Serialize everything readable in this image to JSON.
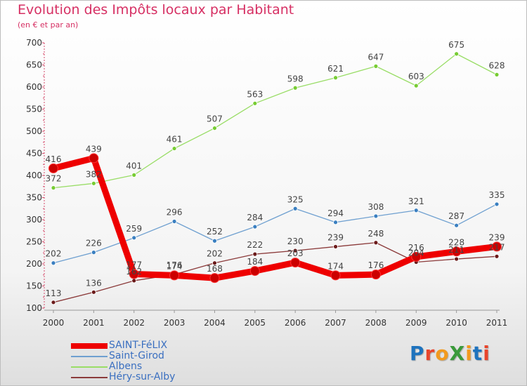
{
  "header": {
    "title": "Evolution des Impôts locaux par Habitant",
    "subtitle": "(en € et par an)"
  },
  "logo": {
    "text": "ProXiti",
    "letters": [
      "P",
      "r",
      "o",
      "X",
      "i",
      "t",
      "i"
    ],
    "colors": [
      "#1e73be",
      "#e8452c",
      "#f29a1e",
      "#3a9a3a",
      "#f29a1e",
      "#1e73be",
      "#e8452c"
    ]
  },
  "chart_data": {
    "type": "line",
    "title": "Evolution des Impôts locaux par Habitant",
    "subtitle": "(en € et par an)",
    "xlabel": "",
    "ylabel": "",
    "x": [
      "2000",
      "2001",
      "2002",
      "2003",
      "2004",
      "2005",
      "2006",
      "2007",
      "2008",
      "2009",
      "2010",
      "2011"
    ],
    "ylim": [
      100,
      700
    ],
    "yticks": [
      100,
      150,
      200,
      250,
      300,
      350,
      400,
      450,
      500,
      550,
      600,
      650,
      700
    ],
    "grid": false,
    "legend_position": "bottom-left",
    "series": [
      {
        "name": "SAINT-FéLIX",
        "color": "#ee0000",
        "emphasis": true,
        "values": [
          416,
          439,
          177,
          174,
          168,
          184,
          203,
          174,
          176,
          216,
          228,
          239
        ]
      },
      {
        "name": "Saint-Girod",
        "color": "#6fa0d0",
        "point_color": "#3a7fc0",
        "values": [
          202,
          226,
          259,
          296,
          252,
          284,
          325,
          294,
          308,
          321,
          287,
          335
        ]
      },
      {
        "name": "Albens",
        "color": "#99dd66",
        "point_color": "#77cc33",
        "values": [
          372,
          382,
          401,
          461,
          507,
          563,
          598,
          621,
          647,
          603,
          675,
          628
        ]
      },
      {
        "name": "Héry-sur-Alby",
        "color": "#8b3a3a",
        "point_color": "#6b1a1a",
        "values": [
          113,
          136,
          162,
          176,
          202,
          222,
          230,
          239,
          248,
          204,
          211,
          217
        ]
      }
    ]
  }
}
